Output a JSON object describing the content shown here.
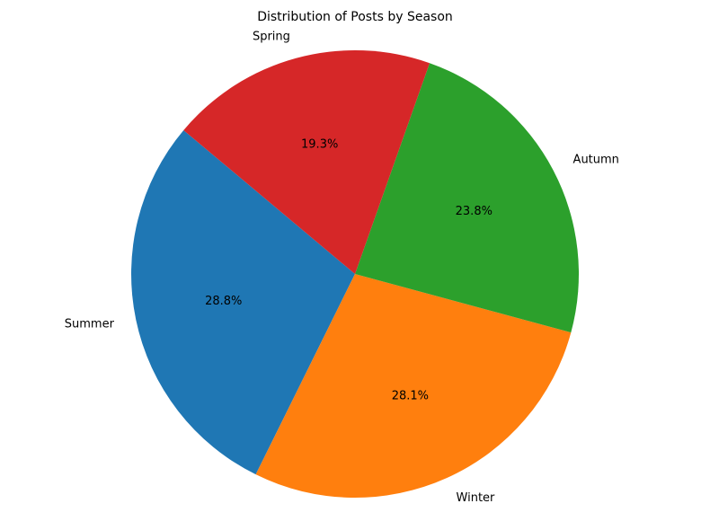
{
  "chart_data": {
    "type": "pie",
    "title": "Distribution of Posts by Season",
    "categories": [
      "Summer",
      "Winter",
      "Autumn",
      "Spring"
    ],
    "values": [
      28.8,
      28.1,
      23.8,
      19.3
    ],
    "value_labels": [
      "28.8%",
      "28.1%",
      "23.8%",
      "19.3%"
    ],
    "colors": [
      "#1f77b4",
      "#ff7f0e",
      "#2ca02c",
      "#d62728"
    ],
    "start_angle_deg": 140,
    "direction": "counterclockwise"
  }
}
